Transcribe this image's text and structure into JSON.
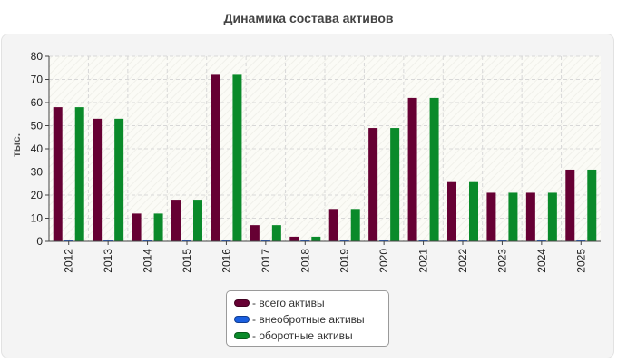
{
  "chart_data": {
    "type": "bar",
    "title": "Динамика состава активов",
    "ylabel": "тыс.",
    "xlabel": "",
    "ylim": [
      0,
      80
    ],
    "yticks": [
      0,
      10,
      20,
      30,
      40,
      50,
      60,
      70,
      80
    ],
    "grid": true,
    "legend_position": "bottom-center",
    "categories": [
      "2012",
      "2013",
      "2014",
      "2015",
      "2016",
      "2017",
      "2018",
      "2019",
      "2020",
      "2021",
      "2022",
      "2023",
      "2024",
      "2025"
    ],
    "series": [
      {
        "name": "- всего активы",
        "color": "#660033",
        "values": [
          58,
          53,
          12,
          18,
          72,
          7,
          2,
          14,
          49,
          62,
          26,
          21,
          21,
          31
        ]
      },
      {
        "name": "- внеобротные активы",
        "color": "#1a5fe0",
        "values": [
          0,
          0,
          0,
          0,
          0,
          0,
          0,
          0,
          0,
          0,
          0,
          0,
          0,
          0
        ]
      },
      {
        "name": "- оборотные активы",
        "color": "#0a8a2a",
        "values": [
          58,
          53,
          12,
          18,
          72,
          7,
          2,
          14,
          49,
          62,
          26,
          21,
          21,
          31
        ]
      }
    ]
  }
}
